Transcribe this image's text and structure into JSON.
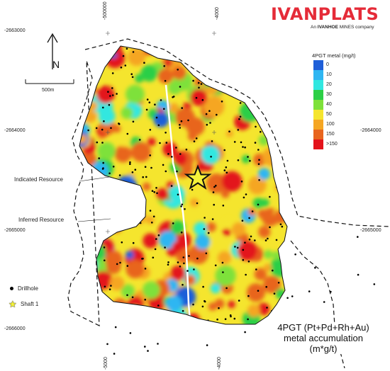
{
  "brand": {
    "name": "IVANPLATS",
    "subtitle_prefix": "An ",
    "subtitle_bold": "IVANHOE",
    "subtitle_suffix": " MINES company",
    "color": "#e52b38"
  },
  "grid_ticks": {
    "top": [
      "-500000",
      "-4000"
    ],
    "left": [
      "-2663000",
      "-2664000",
      "-2665000",
      "-2666000"
    ],
    "right": [
      "-2664000",
      "-2665000"
    ],
    "bottom": [
      "-5000",
      "-4000"
    ]
  },
  "north_arrow": {
    "label": "N",
    "icon": "north-arrow-icon"
  },
  "scale_bar": {
    "label": "500m"
  },
  "legend": {
    "title": "4PGT metal (mg/t)",
    "items": [
      {
        "label": "0",
        "color": "#1f5fd8"
      },
      {
        "label": "10",
        "color": "#2fb6f2"
      },
      {
        "label": "20",
        "color": "#31e7e0"
      },
      {
        "label": "30",
        "color": "#2ccf46"
      },
      {
        "label": "40",
        "color": "#7ee13a"
      },
      {
        "label": "50",
        "color": "#f5e52e"
      },
      {
        "label": "100",
        "color": "#f5a623"
      },
      {
        "label": "150",
        "color": "#e8651e"
      },
      {
        "label": ">150",
        "color": "#e3131b"
      }
    ]
  },
  "callouts": {
    "indicated": "Indicated Resource",
    "inferred": "Inferred Resource"
  },
  "key": {
    "drillhole": "Drillhole",
    "shaft": "Shaft 1"
  },
  "caption": {
    "line1": "4PGT (Pt+Pd+Rh+Au)",
    "line2": "metal accumulation",
    "line3": "(m*g/t)"
  }
}
